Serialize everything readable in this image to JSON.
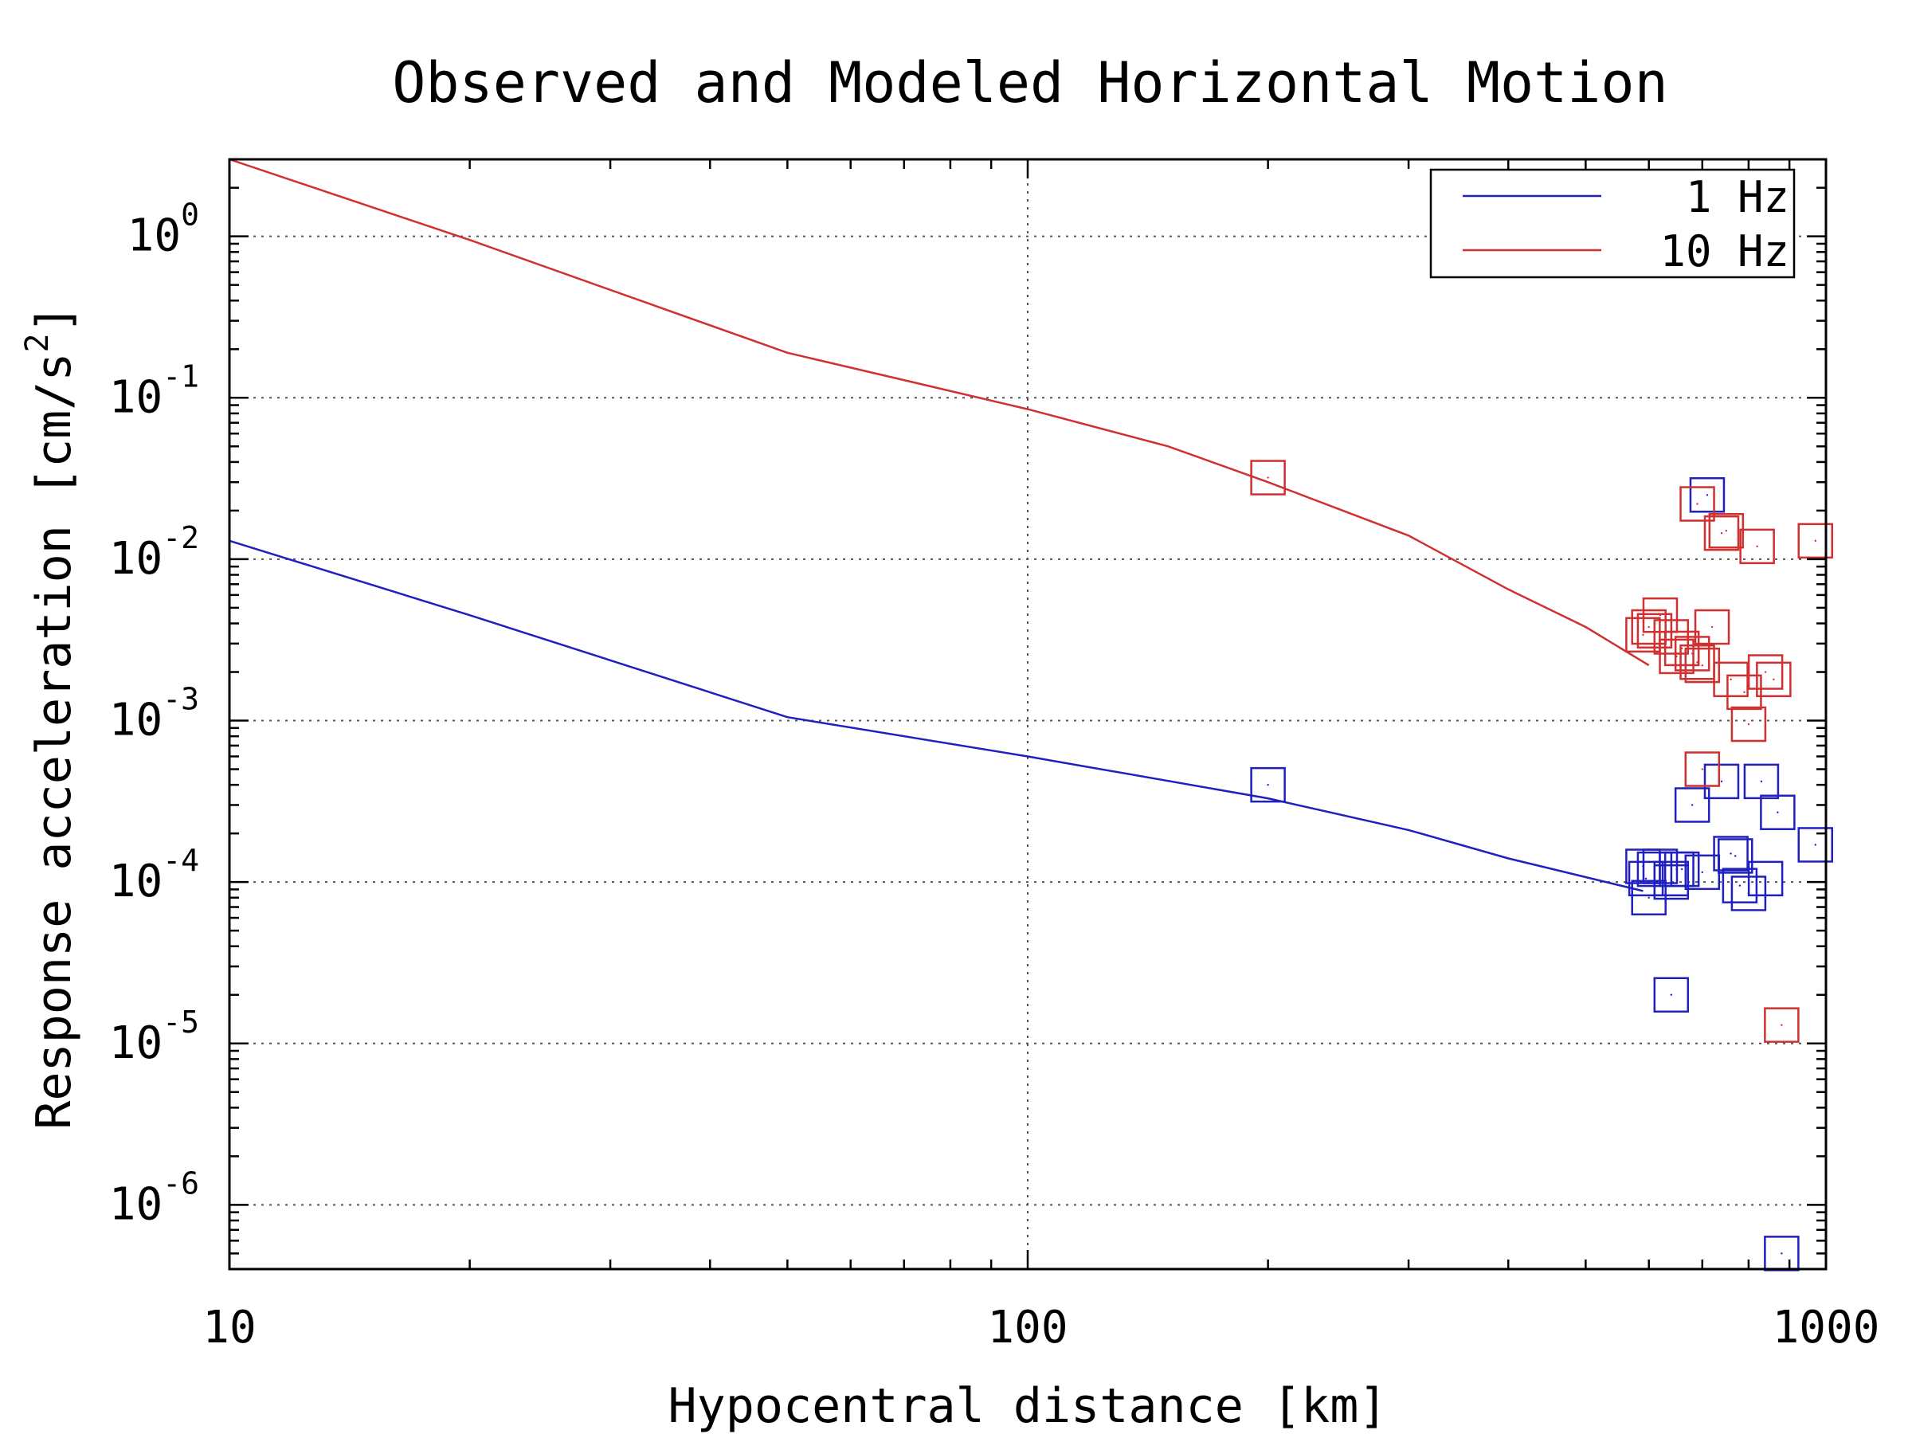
{
  "chart_data": {
    "type": "scatter",
    "title": "Observed and Modeled Horizontal Motion",
    "xlabel": "Hypocentral distance [km]",
    "ylabel_main": "Response acceleration [cm/s",
    "ylabel_sup": "2",
    "ylabel_end": "]",
    "x_scale": "log",
    "y_scale": "log",
    "xlim": [
      10,
      1000
    ],
    "ylim": [
      4e-07,
      3
    ],
    "x_ticks": [
      {
        "value": 10,
        "label": "10"
      },
      {
        "value": 100,
        "label": "100"
      },
      {
        "value": 1000,
        "label": "1000"
      }
    ],
    "y_ticks": [
      {
        "value": 1,
        "base": "10",
        "exp": "0"
      },
      {
        "value": 0.1,
        "base": "10",
        "exp": "-1"
      },
      {
        "value": 0.01,
        "base": "10",
        "exp": "-2"
      },
      {
        "value": 0.001,
        "base": "10",
        "exp": "-3"
      },
      {
        "value": 0.0001,
        "base": "10",
        "exp": "-4"
      },
      {
        "value": 1e-05,
        "base": "10",
        "exp": "-5"
      },
      {
        "value": 1e-06,
        "base": "10",
        "exp": "-6"
      }
    ],
    "grid": true,
    "legend_position": "top-right",
    "legend": [
      {
        "label": "1 Hz",
        "color": "#2020c0"
      },
      {
        "label": "10 Hz",
        "color": "#d03030"
      }
    ],
    "series": [
      {
        "name": "1 Hz",
        "color": "#2020c0",
        "line": [
          [
            10,
            0.013
          ],
          [
            20,
            0.0045
          ],
          [
            50,
            0.00105
          ],
          [
            100,
            0.0006
          ],
          [
            200,
            0.00033
          ],
          [
            300,
            0.00021
          ],
          [
            400,
            0.00014
          ],
          [
            590,
            8.8e-05
          ]
        ],
        "points": [
          [
            200,
            0.0004
          ],
          [
            590,
            0.000125
          ],
          [
            595,
            0.000105
          ],
          [
            600,
            8e-05
          ],
          [
            610,
            0.00012
          ],
          [
            640,
            0.0001
          ],
          [
            650,
            0.00012
          ],
          [
            640,
            0.000105
          ],
          [
            660,
            0.00012
          ],
          [
            680,
            0.0003
          ],
          [
            620,
            0.000125
          ],
          [
            640,
            2e-05
          ],
          [
            700,
            0.000115
          ],
          [
            710,
            0.025
          ],
          [
            740,
            0.00042
          ],
          [
            760,
            0.00015
          ],
          [
            770,
            0.000145
          ],
          [
            780,
            9.5e-05
          ],
          [
            800,
            8.5e-05
          ],
          [
            830,
            0.00042
          ],
          [
            840,
            0.000105
          ],
          [
            870,
            0.00027
          ],
          [
            880,
            5e-07
          ],
          [
            970,
            0.00017
          ]
        ]
      },
      {
        "name": "10 Hz",
        "color": "#d03030",
        "line": [
          [
            10,
            3
          ],
          [
            20,
            0.95
          ],
          [
            50,
            0.19
          ],
          [
            100,
            0.085
          ],
          [
            150,
            0.05
          ],
          [
            200,
            0.03
          ],
          [
            300,
            0.014
          ],
          [
            400,
            0.0065
          ],
          [
            500,
            0.0038
          ],
          [
            600,
            0.0022
          ]
        ],
        "points": [
          [
            200,
            0.032
          ],
          [
            590,
            0.0034
          ],
          [
            600,
            0.0038
          ],
          [
            610,
            0.0036
          ],
          [
            620,
            0.0045
          ],
          [
            640,
            0.0033
          ],
          [
            660,
            0.0028
          ],
          [
            650,
            0.0025
          ],
          [
            680,
            0.0026
          ],
          [
            700,
            0.0022
          ],
          [
            720,
            0.0038
          ],
          [
            690,
            0.0023
          ],
          [
            700,
            0.0005
          ],
          [
            690,
            0.022
          ],
          [
            740,
            0.0145
          ],
          [
            750,
            0.015
          ],
          [
            760,
            0.0018
          ],
          [
            790,
            0.0015
          ],
          [
            800,
            0.00095
          ],
          [
            820,
            0.012
          ],
          [
            840,
            0.002
          ],
          [
            860,
            0.0018
          ],
          [
            880,
            1.3e-05
          ],
          [
            970,
            0.013
          ]
        ]
      }
    ]
  }
}
